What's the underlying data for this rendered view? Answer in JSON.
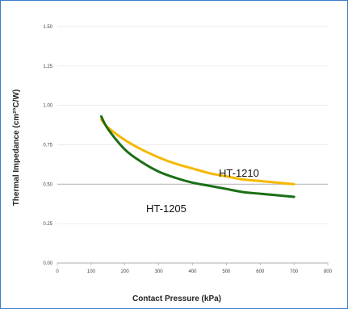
{
  "chart_data": {
    "type": "line",
    "title": "",
    "xlabel": "Contact Pressure (kPa)",
    "ylabel": "Thermal Impedance (cm²°C/W)",
    "xlim": [
      0,
      800
    ],
    "ylim": [
      0.0,
      1.5
    ],
    "x_ticks": [
      0,
      100,
      200,
      300,
      400,
      500,
      600,
      700,
      800
    ],
    "x_tick_labels": [
      "0",
      "100",
      "200",
      "300",
      "400",
      "500",
      "600",
      "700",
      "800"
    ],
    "y_ticks": [
      0.0,
      0.25,
      0.5,
      0.75,
      1.0,
      1.25,
      1.5
    ],
    "y_tick_labels": [
      "0.00",
      "0.25",
      "0.50",
      "0.75",
      "1.00",
      "1.25",
      "1.50"
    ],
    "grid": true,
    "legend": "inline labels",
    "series": [
      {
        "name": "HT-1210",
        "color": "#f5b800",
        "x": [
          130,
          150,
          200,
          250,
          300,
          350,
          400,
          450,
          500,
          550,
          600,
          650,
          700
        ],
        "y": [
          0.91,
          0.86,
          0.78,
          0.72,
          0.67,
          0.63,
          0.6,
          0.57,
          0.55,
          0.53,
          0.52,
          0.51,
          0.5
        ]
      },
      {
        "name": "HT-1205",
        "color": "#1a6e14",
        "x": [
          130,
          150,
          200,
          250,
          300,
          350,
          400,
          450,
          500,
          550,
          600,
          650,
          700
        ],
        "y": [
          0.93,
          0.85,
          0.72,
          0.64,
          0.58,
          0.54,
          0.51,
          0.49,
          0.47,
          0.45,
          0.44,
          0.43,
          0.42
        ]
      }
    ]
  }
}
